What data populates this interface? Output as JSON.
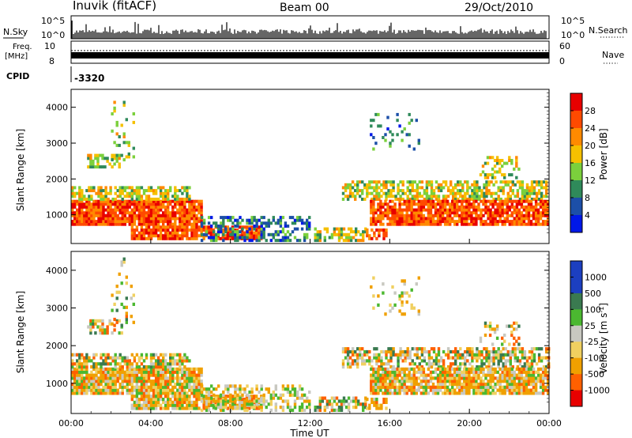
{
  "header": {
    "station": "Inuvik (fitACF)",
    "beam": "Beam 00",
    "date": "29/Oct/2010"
  },
  "status_panels": {
    "nsky_label": "N.Sky",
    "nsky_ticks": [
      "10^5",
      "10^0"
    ],
    "nsearch_label": "N.Search",
    "nsearch_ticks": [
      "10^5",
      "10^0"
    ],
    "freq_label_top": "Freq.",
    "freq_label_unit": "[MHz]",
    "freq_ticks": [
      "10",
      "8"
    ],
    "nave_label": "Nave",
    "nave_ticks": [
      "60",
      "0"
    ],
    "cpid_label": "CPID",
    "cpid_value": "-3320"
  },
  "chart_data": [
    {
      "type": "heatmap",
      "name": "power",
      "ylabel": "Slant Range [km]",
      "yticks": [
        "1000",
        "2000",
        "3000",
        "4000"
      ],
      "ylim": [
        200,
        4500
      ],
      "xlim": [
        0,
        24
      ],
      "colorbar": {
        "label": "Power [dB]",
        "ticks": [
          "4",
          "8",
          "12",
          "16",
          "20",
          "24",
          "28"
        ],
        "range": [
          0,
          32
        ],
        "colors": [
          "#0018e8",
          "#1c4fa8",
          "#2f8a5a",
          "#7bd03c",
          "#f5c000",
          "#ff8a00",
          "#ff4a00",
          "#e80000"
        ]
      }
    },
    {
      "type": "heatmap",
      "name": "velocity",
      "ylabel": "Slant Range [km]",
      "yticks": [
        "1000",
        "2000",
        "3000",
        "4000"
      ],
      "ylim": [
        200,
        4500
      ],
      "xlim": [
        0,
        24
      ],
      "xlabel": "Time UT",
      "xticks": [
        "00:00",
        "04:00",
        "08:00",
        "12:00",
        "16:00",
        "20:00",
        "00:00"
      ],
      "colorbar": {
        "label": "Velocity [m s",
        "label_sup": "-1",
        "label_end": "]",
        "ticks": [
          "1000",
          "500",
          "100",
          "25",
          "-25",
          "-100",
          "-500",
          "-1000"
        ],
        "colors": [
          "#1c3fc0",
          "#3a7a50",
          "#4bb830",
          "#c8c8c0",
          "#f0d060",
          "#f0a000",
          "#ff6000",
          "#e80000"
        ]
      }
    }
  ]
}
